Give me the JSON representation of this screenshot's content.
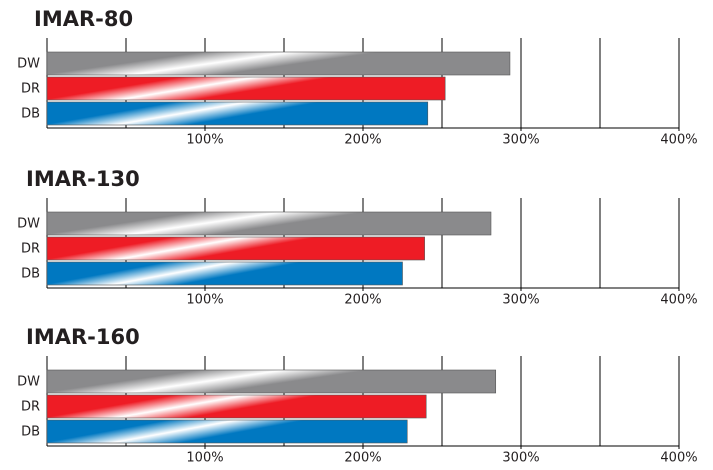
{
  "chart_data": [
    {
      "type": "bar",
      "orientation": "horizontal",
      "title": "IMAR-80",
      "categories": [
        "DW",
        "DR",
        "DB"
      ],
      "values": [
        293,
        252,
        241
      ],
      "colors": [
        "#8a8a8c",
        "#ee1c25",
        "#0078c1"
      ],
      "xlim": [
        0,
        400
      ],
      "xticks": [
        {
          "value": 100,
          "label": "100%"
        },
        {
          "value": 200,
          "label": "200%"
        },
        {
          "value": 300,
          "label": "300%"
        },
        {
          "value": 400,
          "label": "400%"
        }
      ],
      "minor_xticks": [
        50,
        150,
        250,
        350
      ],
      "grid": true
    },
    {
      "type": "bar",
      "orientation": "horizontal",
      "title": "IMAR-130",
      "categories": [
        "DW",
        "DR",
        "DB"
      ],
      "values": [
        281,
        239,
        225
      ],
      "colors": [
        "#8a8a8c",
        "#ee1c25",
        "#0078c1"
      ],
      "xlim": [
        0,
        400
      ],
      "xticks": [
        {
          "value": 100,
          "label": "100%"
        },
        {
          "value": 200,
          "label": "200%"
        },
        {
          "value": 300,
          "label": "300%"
        },
        {
          "value": 400,
          "label": "400%"
        }
      ],
      "minor_xticks": [
        50,
        150,
        250,
        350
      ],
      "grid": true
    },
    {
      "type": "bar",
      "orientation": "horizontal",
      "title": "IMAR-160",
      "categories": [
        "DW",
        "DR",
        "DB"
      ],
      "values": [
        284,
        240,
        228
      ],
      "colors": [
        "#8a8a8c",
        "#ee1c25",
        "#0078c1"
      ],
      "xlim": [
        0,
        400
      ],
      "xticks": [
        {
          "value": 100,
          "label": "100%"
        },
        {
          "value": 200,
          "label": "200%"
        },
        {
          "value": 300,
          "label": "300%"
        },
        {
          "value": 400,
          "label": "400%"
        }
      ],
      "minor_xticks": [
        50,
        150,
        250,
        350
      ],
      "grid": true
    }
  ]
}
